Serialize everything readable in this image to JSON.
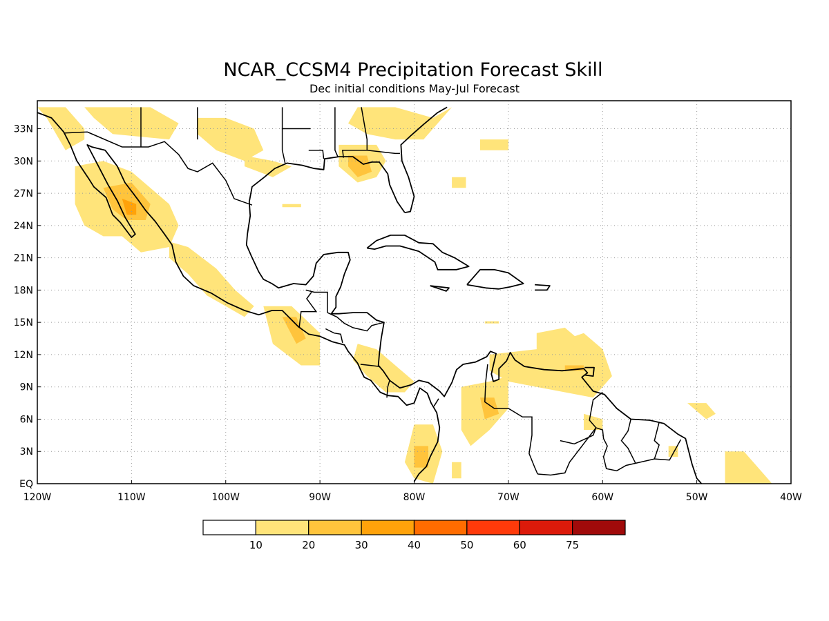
{
  "title": "NCAR_CCSM4 Precipitation Forecast Skill",
  "subtitle": "Dec initial conditions  May-Jul Forecast",
  "map": {
    "lon_range": [
      -120,
      -40
    ],
    "lat_range": [
      0,
      35
    ],
    "lon_ticks": [
      {
        "value": -120,
        "label": "120W"
      },
      {
        "value": -110,
        "label": "110W"
      },
      {
        "value": -100,
        "label": "100W"
      },
      {
        "value": -90,
        "label": "90W"
      },
      {
        "value": -80,
        "label": "80W"
      },
      {
        "value": -70,
        "label": "70W"
      },
      {
        "value": -60,
        "label": "60W"
      },
      {
        "value": -50,
        "label": "50W"
      },
      {
        "value": -40,
        "label": "40W"
      }
    ],
    "lat_ticks": [
      {
        "value": 0,
        "label": "EQ"
      },
      {
        "value": 3,
        "label": "3N"
      },
      {
        "value": 6,
        "label": "6N"
      },
      {
        "value": 9,
        "label": "9N"
      },
      {
        "value": 12,
        "label": "12N"
      },
      {
        "value": 15,
        "label": "15N"
      },
      {
        "value": 18,
        "label": "18N"
      },
      {
        "value": 21,
        "label": "21N"
      },
      {
        "value": 24,
        "label": "24N"
      },
      {
        "value": 27,
        "label": "27N"
      },
      {
        "value": 30,
        "label": "30N"
      },
      {
        "value": 33,
        "label": "33N"
      }
    ],
    "grid": true
  },
  "colorbar": {
    "colors": [
      "#ffffff",
      "#ffe47a",
      "#ffc43c",
      "#ffa20a",
      "#ff6c00",
      "#ff3a0a",
      "#dc1a0a",
      "#a00a0a"
    ],
    "labels": [
      "10",
      "20",
      "30",
      "40",
      "50",
      "60",
      "75"
    ]
  },
  "chart_data": {
    "type": "heatmap",
    "variable": "precipitation forecast skill",
    "levels": [
      10,
      20,
      30,
      40,
      50,
      60,
      75
    ],
    "regions": [
      {
        "name": "california-baja",
        "level": 10,
        "poly": [
          [
            -120,
            35
          ],
          [
            -117,
            35
          ],
          [
            -115,
            33
          ],
          [
            -115,
            32
          ],
          [
            -117,
            31
          ],
          [
            -119,
            34
          ]
        ]
      },
      {
        "name": "us-southwest",
        "level": 10,
        "poly": [
          [
            -115,
            35
          ],
          [
            -108,
            35
          ],
          [
            -105,
            33.5
          ],
          [
            -106,
            32
          ],
          [
            -112,
            32.5
          ],
          [
            -114,
            34
          ]
        ]
      },
      {
        "name": "texas-central",
        "level": 10,
        "poly": [
          [
            -103,
            34
          ],
          [
            -100,
            34
          ],
          [
            -97,
            33
          ],
          [
            -96,
            31
          ],
          [
            -98,
            30
          ],
          [
            -101,
            31
          ],
          [
            -103,
            32.5
          ]
        ]
      },
      {
        "name": "gulf-coast-west",
        "level": 10,
        "poly": [
          [
            -98,
            30.5
          ],
          [
            -95,
            30
          ],
          [
            -93,
            29.5
          ],
          [
            -95,
            28.5
          ],
          [
            -98,
            29.5
          ]
        ]
      },
      {
        "name": "georgia-carolina",
        "level": 10,
        "poly": [
          [
            -86,
            35
          ],
          [
            -82,
            35
          ],
          [
            -78,
            34
          ],
          [
            -76,
            35
          ],
          [
            -79,
            32
          ],
          [
            -82,
            32
          ],
          [
            -85,
            32.5
          ],
          [
            -87,
            33.5
          ]
        ]
      },
      {
        "name": "florida-panhandle",
        "level": 10,
        "poly": [
          [
            -88,
            31.5
          ],
          [
            -84,
            31.5
          ],
          [
            -83,
            30
          ],
          [
            -84,
            28.5
          ],
          [
            -86,
            28
          ],
          [
            -88,
            29.5
          ]
        ]
      },
      {
        "name": "florida-panhandle-core",
        "level": 20,
        "poly": [
          [
            -87,
            30.5
          ],
          [
            -85,
            30.5
          ],
          [
            -84.5,
            29
          ],
          [
            -86,
            28.5
          ],
          [
            -87,
            29.5
          ]
        ]
      },
      {
        "name": "atlantic-offshore",
        "level": 10,
        "poly": [
          [
            -73,
            32
          ],
          [
            -70,
            32
          ],
          [
            -70,
            31
          ],
          [
            -73,
            31
          ]
        ]
      },
      {
        "name": "bahamas-north",
        "level": 10,
        "poly": [
          [
            -76,
            28.5
          ],
          [
            -74.5,
            28.5
          ],
          [
            -74.5,
            27.5
          ],
          [
            -76,
            27.5
          ]
        ]
      },
      {
        "name": "gulf-of-california",
        "level": 10,
        "poly": [
          [
            -116,
            29.5
          ],
          [
            -113,
            30
          ],
          [
            -110,
            29
          ],
          [
            -106,
            26
          ],
          [
            -105,
            24
          ],
          [
            -106,
            22
          ],
          [
            -109,
            21.5
          ],
          [
            -111,
            23
          ],
          [
            -113,
            23
          ],
          [
            -115,
            24
          ],
          [
            -116,
            26
          ]
        ]
      },
      {
        "name": "gulf-of-california-core",
        "level": 20,
        "poly": [
          [
            -113,
            27.5
          ],
          [
            -110,
            28
          ],
          [
            -108,
            26
          ],
          [
            -108.5,
            24.5
          ],
          [
            -110.5,
            24.5
          ],
          [
            -112,
            25.5
          ]
        ]
      },
      {
        "name": "gulf-of-california-peak",
        "level": 30,
        "poly": [
          [
            -111,
            26.5
          ],
          [
            -109.5,
            26
          ],
          [
            -109.5,
            25
          ],
          [
            -110.5,
            25
          ]
        ]
      },
      {
        "name": "mexico-pacific-coast",
        "level": 10,
        "poly": [
          [
            -106,
            22.5
          ],
          [
            -104,
            22
          ],
          [
            -101,
            20
          ],
          [
            -99,
            18
          ],
          [
            -97,
            16.5
          ],
          [
            -98,
            15.5
          ],
          [
            -100,
            16.5
          ],
          [
            -102,
            17.5
          ],
          [
            -104,
            19.5
          ],
          [
            -106,
            21
          ]
        ]
      },
      {
        "name": "gulf-of-mexico-patch",
        "level": 10,
        "poly": [
          [
            -94,
            26
          ],
          [
            -92,
            26
          ],
          [
            -92,
            25.7
          ],
          [
            -94,
            25.7
          ]
        ]
      },
      {
        "name": "tehuantepec-guatemala",
        "level": 10,
        "poly": [
          [
            -96,
            16.5
          ],
          [
            -93,
            16.5
          ],
          [
            -90,
            14
          ],
          [
            -90,
            11
          ],
          [
            -92,
            11
          ],
          [
            -95,
            13
          ]
        ]
      },
      {
        "name": "tehuantepec-core",
        "level": 20,
        "poly": [
          [
            -94,
            15.5
          ],
          [
            -92.5,
            15.5
          ],
          [
            -91.5,
            13.5
          ],
          [
            -92.5,
            13
          ]
        ]
      },
      {
        "name": "nicaragua-costa-rica",
        "level": 10,
        "poly": [
          [
            -86,
            13
          ],
          [
            -84,
            12.5
          ],
          [
            -82,
            11
          ],
          [
            -80,
            9.5
          ],
          [
            -81,
            8.5
          ],
          [
            -83,
            8.5
          ],
          [
            -85,
            10
          ],
          [
            -86.5,
            11.5
          ]
        ]
      },
      {
        "name": "panama-colombia-pacific",
        "level": 10,
        "poly": [
          [
            -80,
            5.5
          ],
          [
            -78,
            5.5
          ],
          [
            -77,
            3
          ],
          [
            -78,
            0
          ],
          [
            -80,
            0.5
          ],
          [
            -81,
            2
          ]
        ]
      },
      {
        "name": "panama-colombia-pacific-core",
        "level": 20,
        "poly": [
          [
            -80,
            3.5
          ],
          [
            -78.5,
            3.5
          ],
          [
            -78.5,
            1.5
          ],
          [
            -80,
            1.5
          ]
        ]
      },
      {
        "name": "colombia-interior",
        "level": 10,
        "poly": [
          [
            -75,
            9
          ],
          [
            -72,
            9.5
          ],
          [
            -70,
            10
          ],
          [
            -70,
            7
          ],
          [
            -72,
            5
          ],
          [
            -74,
            3.5
          ],
          [
            -75,
            5
          ]
        ]
      },
      {
        "name": "colombia-interior-core",
        "level": 20,
        "poly": [
          [
            -73,
            8
          ],
          [
            -71.5,
            8
          ],
          [
            -71,
            6.5
          ],
          [
            -72.5,
            6
          ]
        ]
      },
      {
        "name": "venezuela-caribbean",
        "level": 10,
        "poly": [
          [
            -72,
            12
          ],
          [
            -67,
            12.5
          ],
          [
            -62,
            14
          ],
          [
            -60,
            12.5
          ],
          [
            -59,
            10
          ],
          [
            -61,
            8
          ],
          [
            -64,
            8.5
          ],
          [
            -67,
            9
          ],
          [
            -70,
            9.5
          ],
          [
            -72,
            10.5
          ]
        ]
      },
      {
        "name": "windward-islands",
        "level": 10,
        "poly": [
          [
            -67,
            14
          ],
          [
            -64,
            14.5
          ],
          [
            -62,
            13
          ],
          [
            -64,
            12.5
          ],
          [
            -67,
            12.5
          ]
        ]
      },
      {
        "name": "venezuela-caribbean-core",
        "level": 20,
        "poly": [
          [
            -64,
            11
          ],
          [
            -62,
            11
          ],
          [
            -62,
            10.5
          ],
          [
            -64,
            10.5
          ]
        ]
      },
      {
        "name": "guyana-coast",
        "level": 10,
        "poly": [
          [
            -62,
            6.5
          ],
          [
            -60,
            6
          ],
          [
            -60,
            5
          ],
          [
            -62,
            5
          ]
        ]
      },
      {
        "name": "caribbean-speck",
        "level": 10,
        "poly": [
          [
            -72.5,
            15.1
          ],
          [
            -71,
            15.1
          ],
          [
            -71,
            14.9
          ],
          [
            -72.5,
            14.9
          ]
        ]
      },
      {
        "name": "atlantic-east",
        "level": 10,
        "poly": [
          [
            -51,
            7.5
          ],
          [
            -49,
            7.5
          ],
          [
            -48,
            6.5
          ],
          [
            -49,
            6
          ]
        ]
      },
      {
        "name": "amazon-mouth",
        "level": 10,
        "poly": [
          [
            -47,
            3
          ],
          [
            -45,
            3
          ],
          [
            -43,
            1
          ],
          [
            -42,
            0
          ],
          [
            -47,
            0
          ]
        ]
      },
      {
        "name": "amapa-patch",
        "level": 10,
        "poly": [
          [
            -53,
            3.5
          ],
          [
            -52,
            3.5
          ],
          [
            -52,
            2.5
          ],
          [
            -53,
            2.5
          ]
        ]
      },
      {
        "name": "ecuador-interior",
        "level": 10,
        "poly": [
          [
            -76,
            2
          ],
          [
            -75,
            2
          ],
          [
            -75,
            0.5
          ],
          [
            -76,
            0.5
          ]
        ]
      }
    ]
  }
}
